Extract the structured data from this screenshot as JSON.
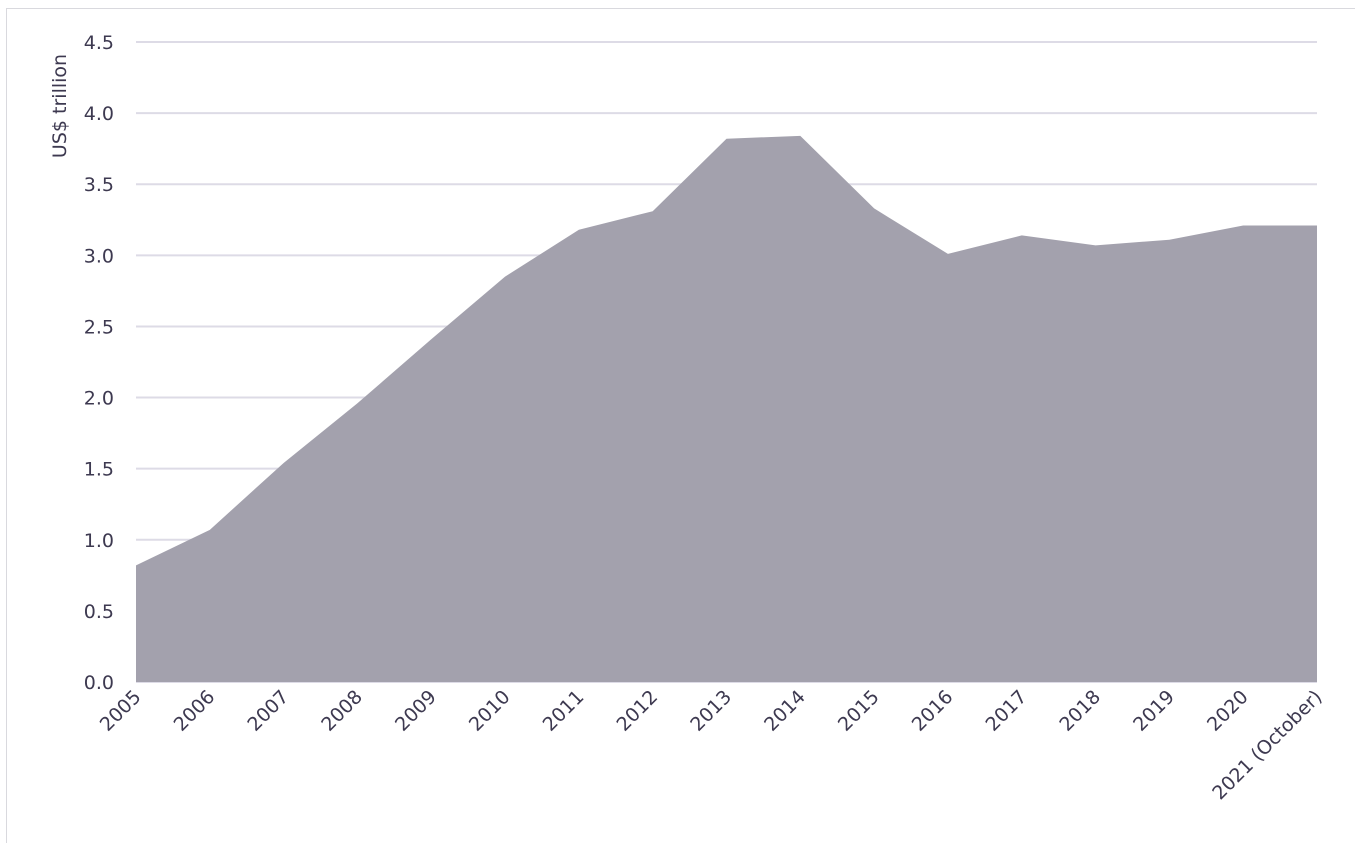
{
  "chart_data": {
    "type": "area",
    "title": "",
    "xlabel": "",
    "ylabel": "US$ trillion",
    "categories": [
      "2005",
      "2006",
      "2007",
      "2008",
      "2009",
      "2010",
      "2011",
      "2012",
      "2013",
      "2014",
      "2015",
      "2016",
      "2017",
      "2018",
      "2019",
      "2020",
      "2021 (October)"
    ],
    "series": [
      {
        "values": [
          0.82,
          1.07,
          1.54,
          1.96,
          2.41,
          2.85,
          3.18,
          3.31,
          3.82,
          3.84,
          3.33,
          3.01,
          3.14,
          3.07,
          3.11,
          3.21,
          3.21
        ]
      }
    ],
    "ylim": [
      0,
      4.5
    ],
    "yticks": [
      "0.0",
      "0.5",
      "1.0",
      "1.5",
      "2.0",
      "2.5",
      "3.0",
      "3.5",
      "4.0",
      "4.5"
    ],
    "grid": true,
    "legend": "none",
    "colors": {
      "area": "#a3a1ad",
      "grid": "#dddbe6",
      "text": "#3d3950"
    }
  }
}
